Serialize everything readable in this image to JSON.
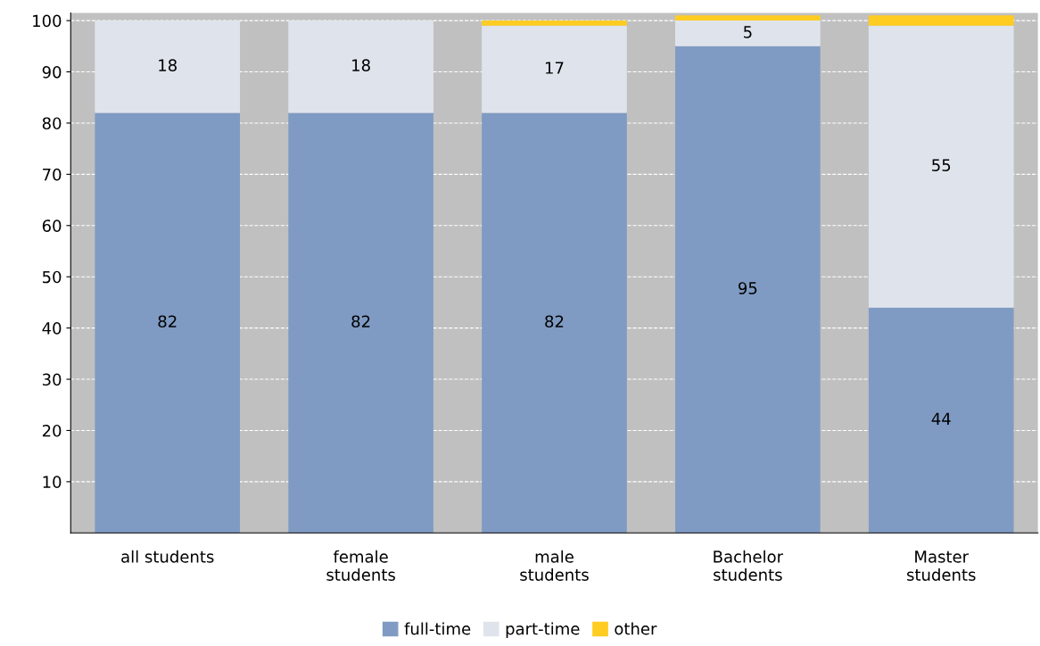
{
  "chart_data": {
    "type": "bar",
    "stacked": true,
    "categories": [
      "all students",
      "female\nstudents",
      "male\nstudents",
      "Bachelor\nstudents",
      "Master\nstudents"
    ],
    "series": [
      {
        "name": "full-time",
        "color": "#7f9bc4",
        "values": [
          82,
          82,
          82,
          95,
          44
        ],
        "value_labels": [
          "82",
          "82",
          "82",
          "95",
          "44"
        ]
      },
      {
        "name": "part-time",
        "color": "#dfe4ec",
        "values": [
          18,
          18,
          17,
          5,
          55
        ],
        "value_labels": [
          "18",
          "18",
          "17",
          "5",
          "55"
        ]
      },
      {
        "name": "other",
        "color": "#ffcc22",
        "values": [
          0,
          0,
          1,
          1,
          2
        ]
      }
    ],
    "ylim": [
      0,
      101.5
    ],
    "yticks": [
      10,
      20,
      30,
      40,
      50,
      60,
      70,
      80,
      90,
      100
    ],
    "grid": "y",
    "legend": "bottom"
  }
}
